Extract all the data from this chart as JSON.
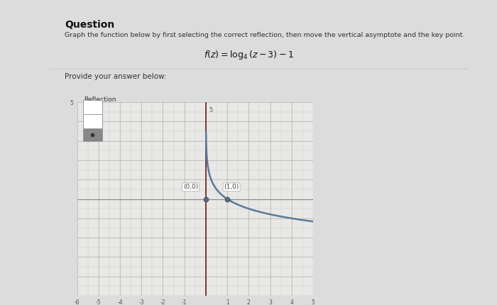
{
  "title": "Question",
  "subtitle": "Graph the function below by first selecting the correct reflection, then move the vertical asymptote and the key point.",
  "function_tex": "$f(z) = \\log_4(z-3)-1$",
  "provide_label": "Provide your answer below:",
  "reflection_label": "Reflection",
  "key_points": [
    [
      0,
      0
    ],
    [
      1,
      0
    ]
  ],
  "key_point_labels": [
    "(0,0)",
    "(1,0)"
  ],
  "vertical_asymptote_x": 0,
  "x_min": -6,
  "x_max": 5,
  "y_min": -5,
  "y_max": 5,
  "bg_color": "#e8e8e6",
  "grid_color": "#c8c8c6",
  "curve_color": "#5a7a9a",
  "asymptote_color": "#7a3030",
  "axis_color": "#888888",
  "page_bg": "#dcdcdc",
  "inner_bg": "#f2f0ee"
}
